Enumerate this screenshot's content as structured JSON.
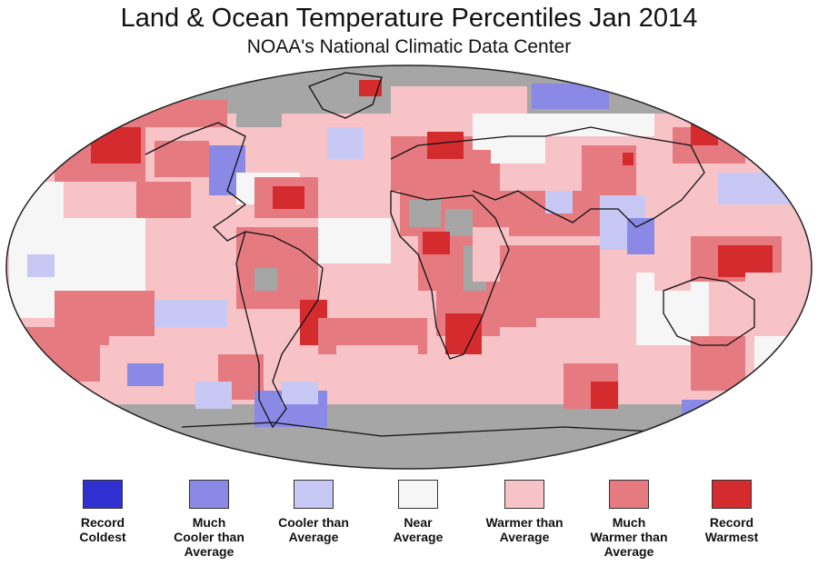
{
  "title": "Land & Ocean Temperature Percentiles Jan 2014",
  "subtitle": "NOAA's National Climatic Data Center",
  "legend": [
    {
      "id": "record-coldest",
      "label": "Record\nColdest",
      "color": "#3030d0"
    },
    {
      "id": "much-cooler",
      "label": "Much\nCooler than\nAverage",
      "color": "#8a8ae6"
    },
    {
      "id": "cooler",
      "label": "Cooler than\nAverage",
      "color": "#c8c8f4"
    },
    {
      "id": "near",
      "label": "Near\nAverage",
      "color": "#f6f6f6"
    },
    {
      "id": "warmer",
      "label": "Warmer than\nAverage",
      "color": "#f7c3c6"
    },
    {
      "id": "much-warmer",
      "label": "Much\nWarmer than\nAverage",
      "color": "#e57b80"
    },
    {
      "id": "record-warmest",
      "label": "Record\nWarmest",
      "color": "#d42b2f"
    }
  ],
  "map": {
    "projection": "Robinson",
    "missing_data_color": "#a6a6a6",
    "background_category": "warmer"
  }
}
